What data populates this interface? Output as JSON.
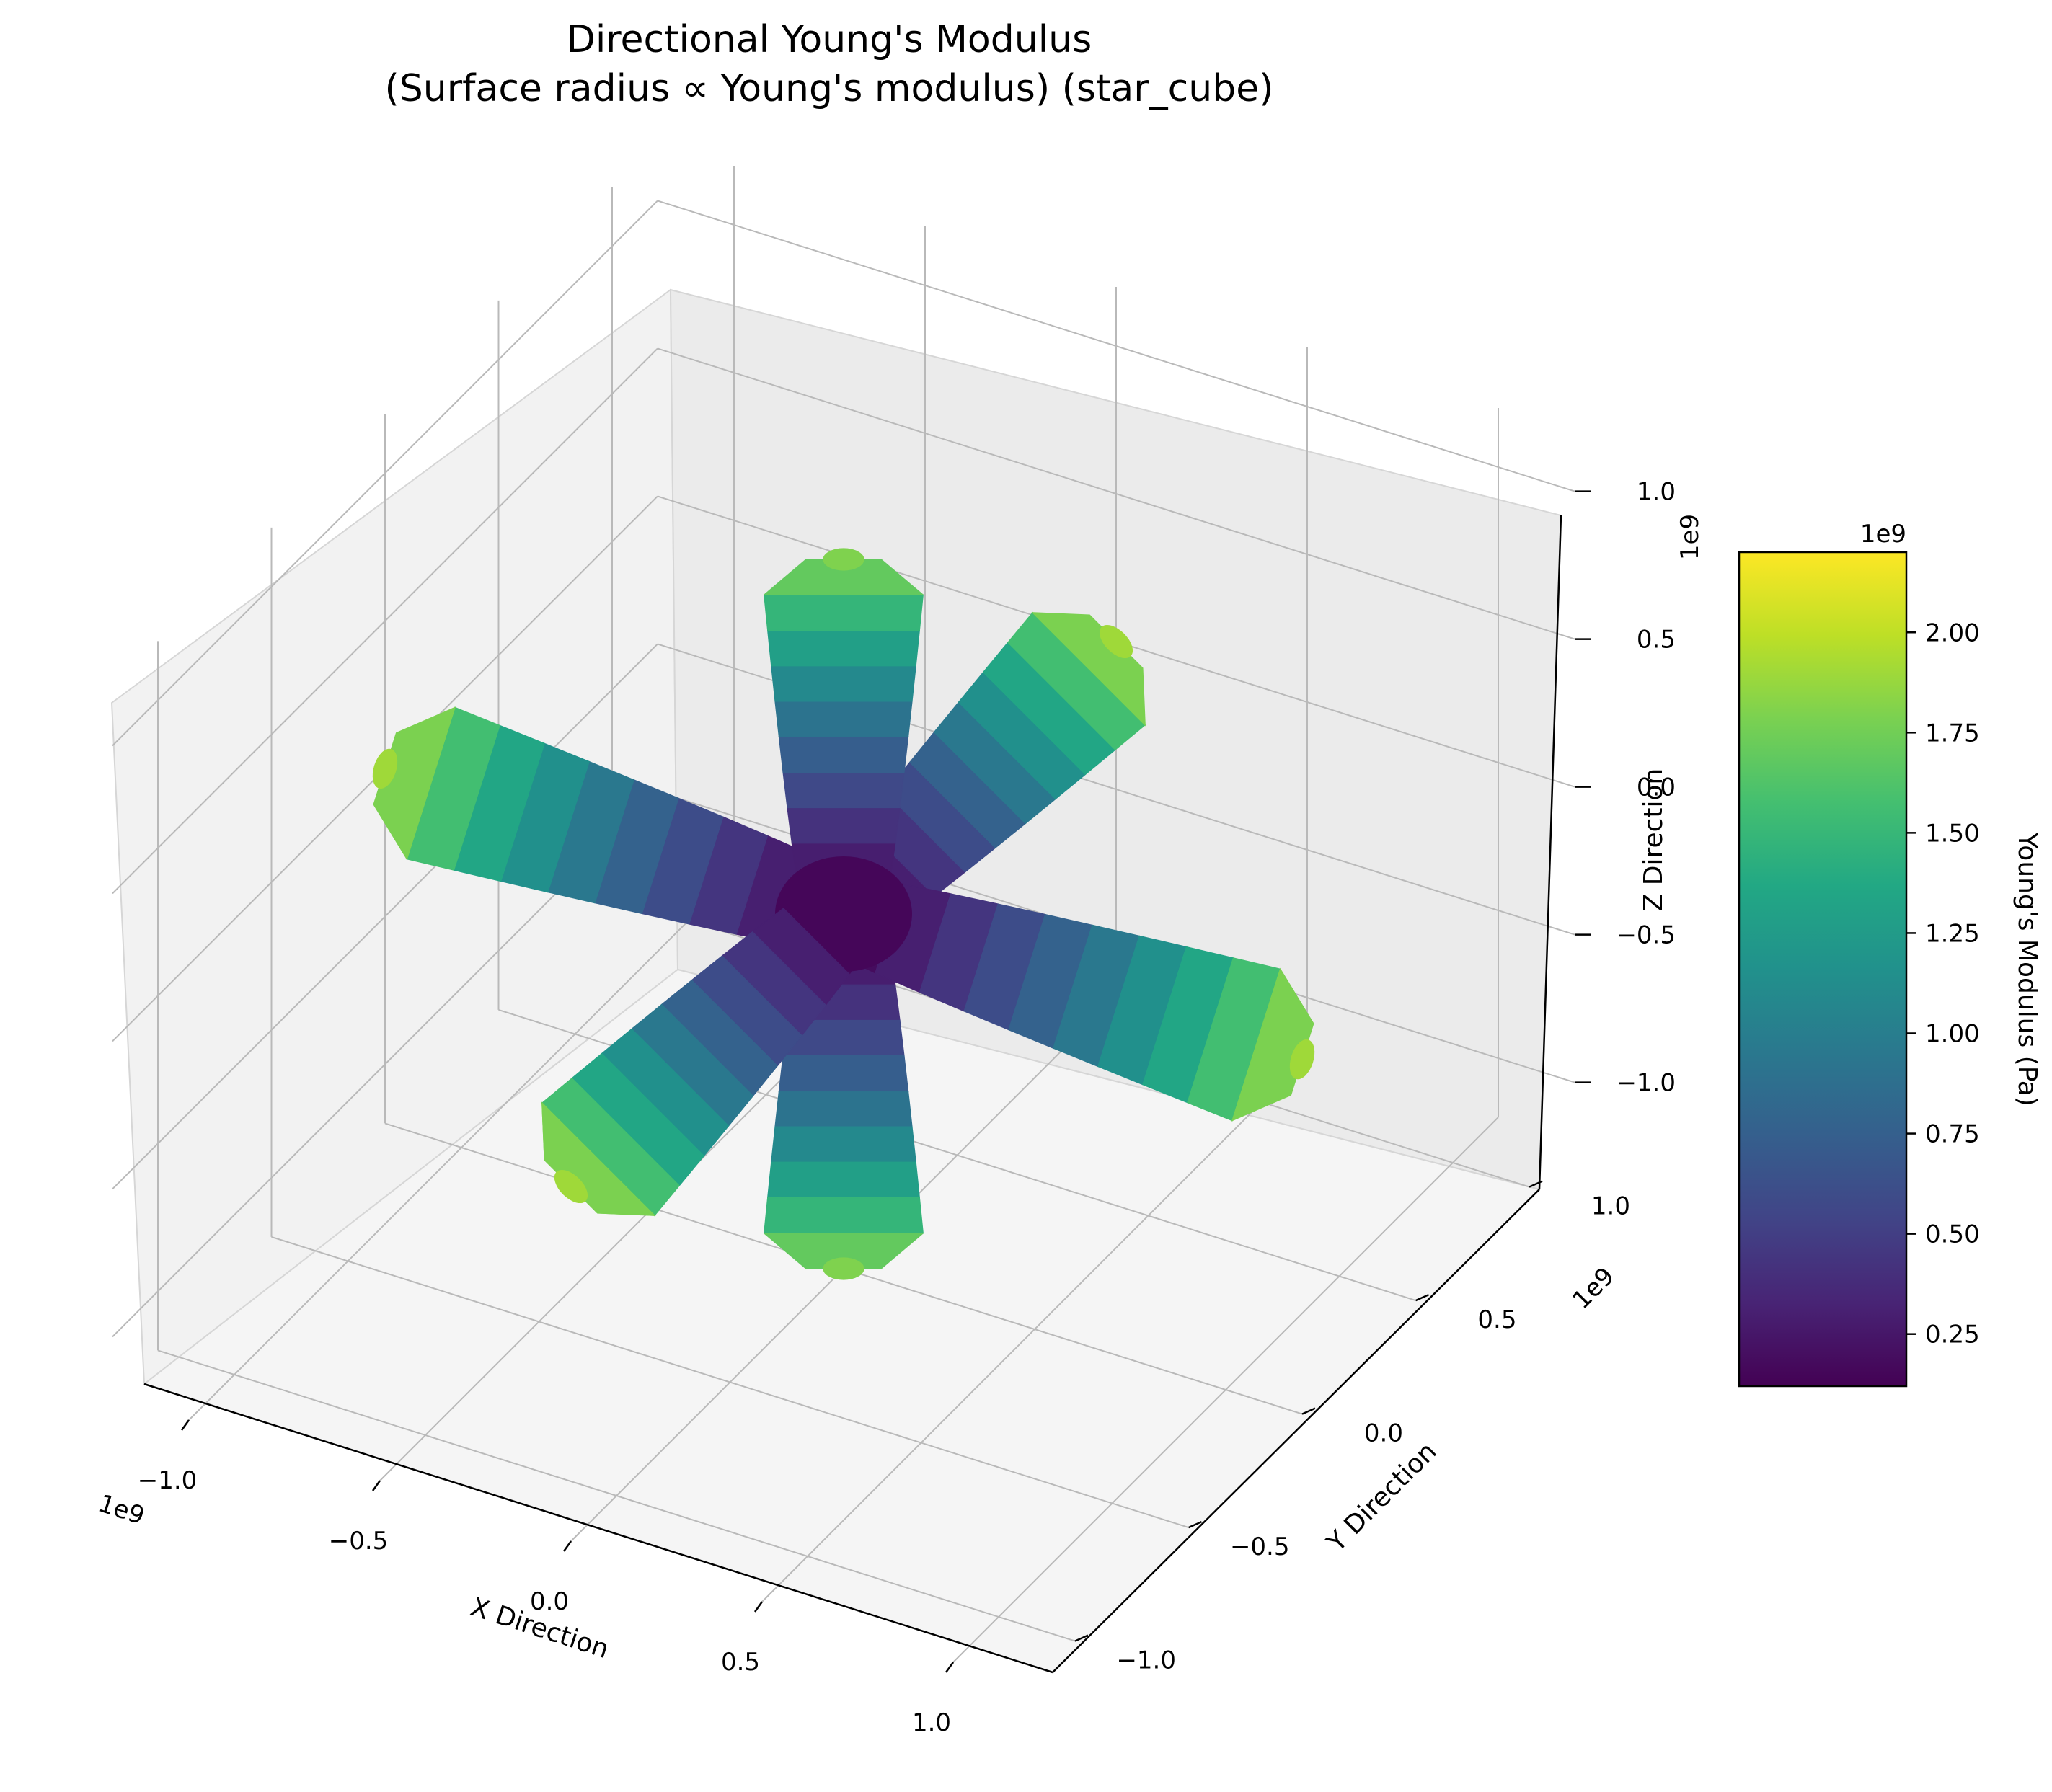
{
  "chart_data": {
    "type": "surface3d",
    "title_line1": "Directional Young's Modulus",
    "title_line2": "(Surface radius ∝ Young's modulus) (star_cube)",
    "xlabel": "X Direction",
    "ylabel": "Y Direction",
    "zlabel": "Z Direction",
    "axis_offset": "1e9",
    "xticks": [
      "−1.0",
      "−0.5",
      "0.0",
      "0.5",
      "1.0"
    ],
    "yticks": [
      "−1.0",
      "−0.5",
      "0.0",
      "0.5",
      "1.0"
    ],
    "zticks": [
      "−1.0",
      "−0.5",
      "0.0",
      "0.5",
      "1.0"
    ],
    "tick_values": [
      -1.0,
      -0.5,
      0.0,
      0.5,
      1.0
    ],
    "axis_range": [
      -1.2,
      1.2
    ],
    "colorbar": {
      "label": "Young's Modulus (Pa)",
      "offset": "1e9",
      "ticks": [
        "0.25",
        "0.50",
        "0.75",
        "1.00",
        "1.25",
        "1.50",
        "1.75",
        "2.00"
      ],
      "tick_values": [
        0.25,
        0.5,
        0.75,
        1.0,
        1.25,
        1.5,
        1.75,
        2.0
      ],
      "range": [
        0.12,
        2.2
      ],
      "colormap": "viridis"
    },
    "lobes": [
      {
        "axis": "+x",
        "length": 1.2,
        "modulus_tip": 1.9
      },
      {
        "axis": "-x",
        "length": 1.2,
        "modulus_tip": 1.9
      },
      {
        "axis": "+y",
        "length": 1.2,
        "modulus_tip": 1.9
      },
      {
        "axis": "-y",
        "length": 1.2,
        "modulus_tip": 1.9
      },
      {
        "axis": "+z",
        "length": 1.2,
        "modulus_tip": 1.8
      },
      {
        "axis": "-z",
        "length": 1.2,
        "modulus_tip": 1.8
      }
    ],
    "center_modulus": 0.15,
    "grid": true
  }
}
